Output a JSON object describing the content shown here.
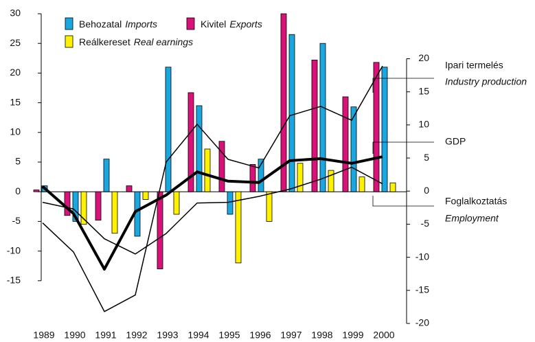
{
  "chart_data": {
    "type": "bar",
    "categories": [
      "1989",
      "1990",
      "1991",
      "1992",
      "1993",
      "1994",
      "1995",
      "1996",
      "1997",
      "1998",
      "1999",
      "2000"
    ],
    "ylim": [
      -22.2,
      30
    ],
    "yticks": [
      30,
      25,
      20,
      15,
      10,
      5,
      0,
      -5,
      -10,
      -15
    ],
    "y2lim": [
      -20,
      26.8
    ],
    "y2ticks": [
      20,
      15,
      10,
      5,
      0,
      -5,
      -10,
      -15,
      -20
    ],
    "series": [
      {
        "name": "Kivitel",
        "name_en": "Exports",
        "color": "#d9127a",
        "values": [
          0.3,
          -4,
          -4.8,
          1,
          -13,
          16.7,
          8.5,
          4.6,
          30,
          22.2,
          16,
          21.8
        ]
      },
      {
        "name": "Behozatal",
        "name_en": "Imports",
        "color": "#1aa7e0",
        "values": [
          1,
          -5,
          5.5,
          -7.5,
          21,
          14.5,
          -3.8,
          5.5,
          26.5,
          25,
          14.3,
          21
        ]
      },
      {
        "name": "Reálkereset",
        "name_en": "Real earnings",
        "color": "#fff200",
        "values": [
          null,
          -5.5,
          -7,
          -1.3,
          -3.8,
          7.2,
          -12,
          -5,
          4.8,
          3.6,
          2.5,
          1.5
        ]
      }
    ],
    "lines": [
      {
        "label": "Ipari termelés",
        "label_en": "Industry production",
        "axis": "y2",
        "width": 1.5,
        "values": [
          -4.8,
          -9.2,
          -18.2,
          -15.7,
          4.4,
          10.1,
          4.8,
          3.5,
          11.4,
          12.8,
          10.7,
          18.9
        ]
      },
      {
        "label": "GDP",
        "axis": "y2",
        "width": 4,
        "values": [
          0.7,
          -3.4,
          -11.8,
          -3.1,
          -0.6,
          2.9,
          1.5,
          1.3,
          4.6,
          4.9,
          4.2,
          5.2
        ]
      },
      {
        "label": "Foglalkoztatás",
        "label_en": "Employment",
        "axis": "y2",
        "width": 1.5,
        "values": [
          -1.7,
          -2.7,
          -7.2,
          -9.5,
          -6.4,
          -1.8,
          -1.7,
          -0.8,
          0.3,
          1.8,
          3.6,
          1.1
        ]
      }
    ]
  }
}
